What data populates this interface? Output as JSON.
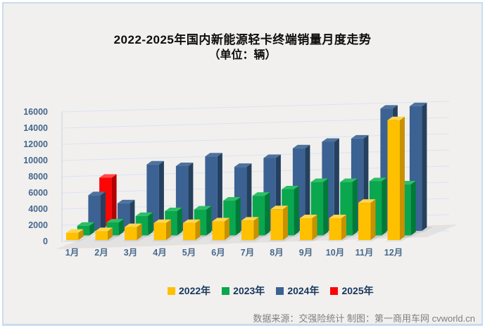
{
  "window": {
    "background": "#FFFFFF",
    "panel_background": "#F1F0EE",
    "panel_border_color": "#C9DCF0"
  },
  "title": {
    "line1": "2022-2025年国内新能源轻卡终端销量月度走势",
    "line2": "（单位：辆）"
  },
  "footer": {
    "text": "数据来源：交强险统计 制图：第一商用车网 cvworld.cn"
  },
  "chart_data": {
    "type": "bar",
    "projection": "3d",
    "title": "2022-2025年国内新能源轻卡终端销量月度走势（单位：辆）",
    "unit": "辆",
    "categories": [
      "1月",
      "2月",
      "3月",
      "4月",
      "5月",
      "6月",
      "7月",
      "8月",
      "9月",
      "10月",
      "11月",
      "12月"
    ],
    "series": [
      {
        "name": "2022年",
        "color": "#FFC000",
        "color_side": "#C79100",
        "color_top": "#FFD74D",
        "values": [
          900,
          1100,
          1600,
          2100,
          2100,
          2300,
          2400,
          3800,
          2700,
          2700,
          4600,
          14800
        ]
      },
      {
        "name": "2023年",
        "color": "#0AA74E",
        "color_side": "#007B37",
        "color_top": "#2DBE68",
        "values": [
          1200,
          1600,
          2400,
          3000,
          3200,
          4300,
          4900,
          5700,
          6600,
          6600,
          6700,
          6300
        ]
      },
      {
        "name": "2024年",
        "color": "#3B6292",
        "color_side": "#24405E",
        "color_top": "#4E729B",
        "values": [
          4400,
          3400,
          8200,
          8000,
          9200,
          7900,
          9000,
          10200,
          11000,
          11400,
          15100,
          15400
        ]
      },
      {
        "name": "2025年",
        "color": "#FE0505",
        "color_side": "#B50000",
        "color_top": "#FF4A4A",
        "values": [
          6000,
          null,
          null,
          null,
          null,
          null,
          null,
          null,
          null,
          null,
          null,
          null
        ]
      }
    ],
    "ylim": [
      0,
      16000
    ],
    "ytick_step": 2000,
    "yticks": [
      "0",
      "2000",
      "4000",
      "6000",
      "8000",
      "10000",
      "12000",
      "14000",
      "16000"
    ],
    "grid": true,
    "legend_position": "bottom",
    "axis_label_color": "#44678F",
    "gridline_color": "#D9E3F2"
  }
}
